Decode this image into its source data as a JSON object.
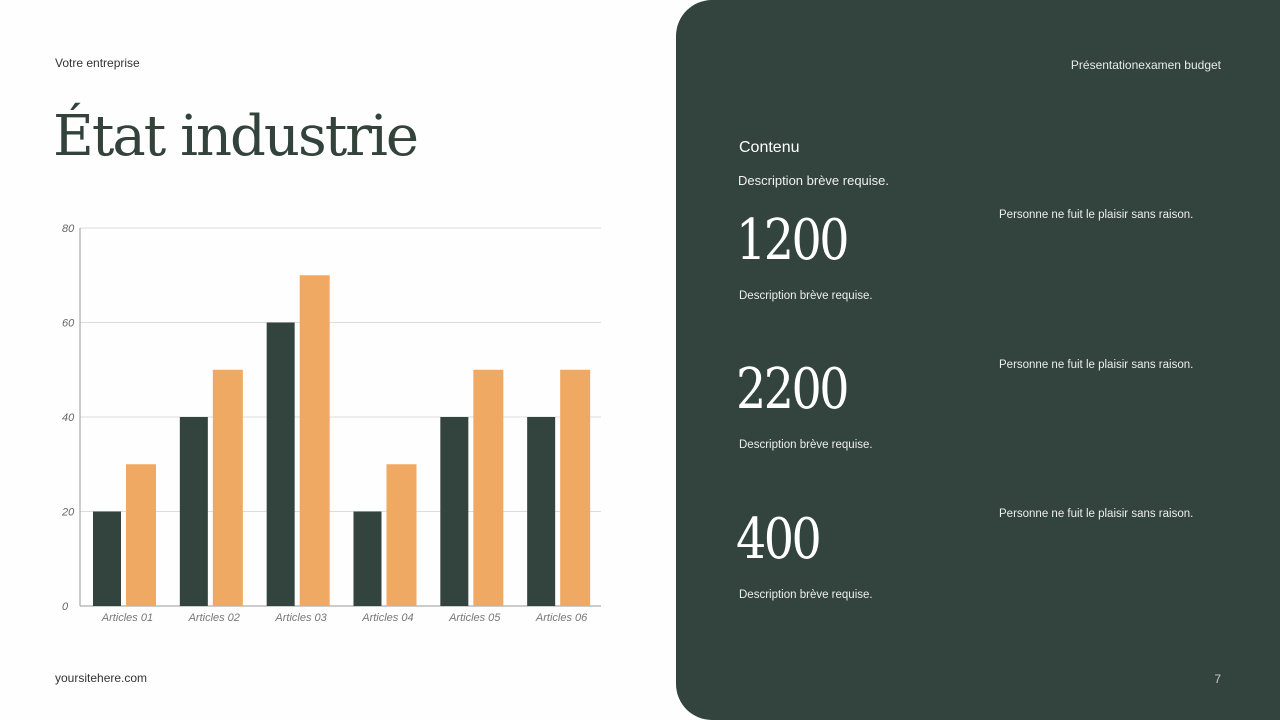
{
  "header": {
    "company": "Votre entreprise",
    "title": "État industrie"
  },
  "footer": {
    "site": "yoursitehere.com",
    "page": "7"
  },
  "panel": {
    "title": "Présentationexamen budget",
    "heading": "Contenu",
    "description": "Description brève requise.",
    "stats": [
      {
        "value": "1200",
        "description": "Description brève requise.",
        "quote": "Personne ne fuit le plaisir sans raison."
      },
      {
        "value": "2200",
        "description": "Description brève requise.",
        "quote": "Personne ne fuit le plaisir sans raison."
      },
      {
        "value": "400",
        "description": "Description brève requise.",
        "quote": "Personne ne fuit le plaisir sans raison."
      }
    ]
  },
  "colors": {
    "dark": "#33433d",
    "accent": "#f0a963"
  },
  "chart_data": {
    "type": "bar",
    "categories": [
      "Articles 01",
      "Articles 02",
      "Articles 03",
      "Articles 04",
      "Articles 05",
      "Articles 06"
    ],
    "series": [
      {
        "values": [
          20,
          40,
          60,
          20,
          40,
          40
        ],
        "color": "#33433d"
      },
      {
        "values": [
          30,
          50,
          70,
          30,
          50,
          50
        ],
        "color": "#f0a963"
      }
    ],
    "ylim": [
      0,
      80
    ],
    "yticks": [
      0,
      20,
      40,
      60,
      80
    ],
    "grid": true
  }
}
